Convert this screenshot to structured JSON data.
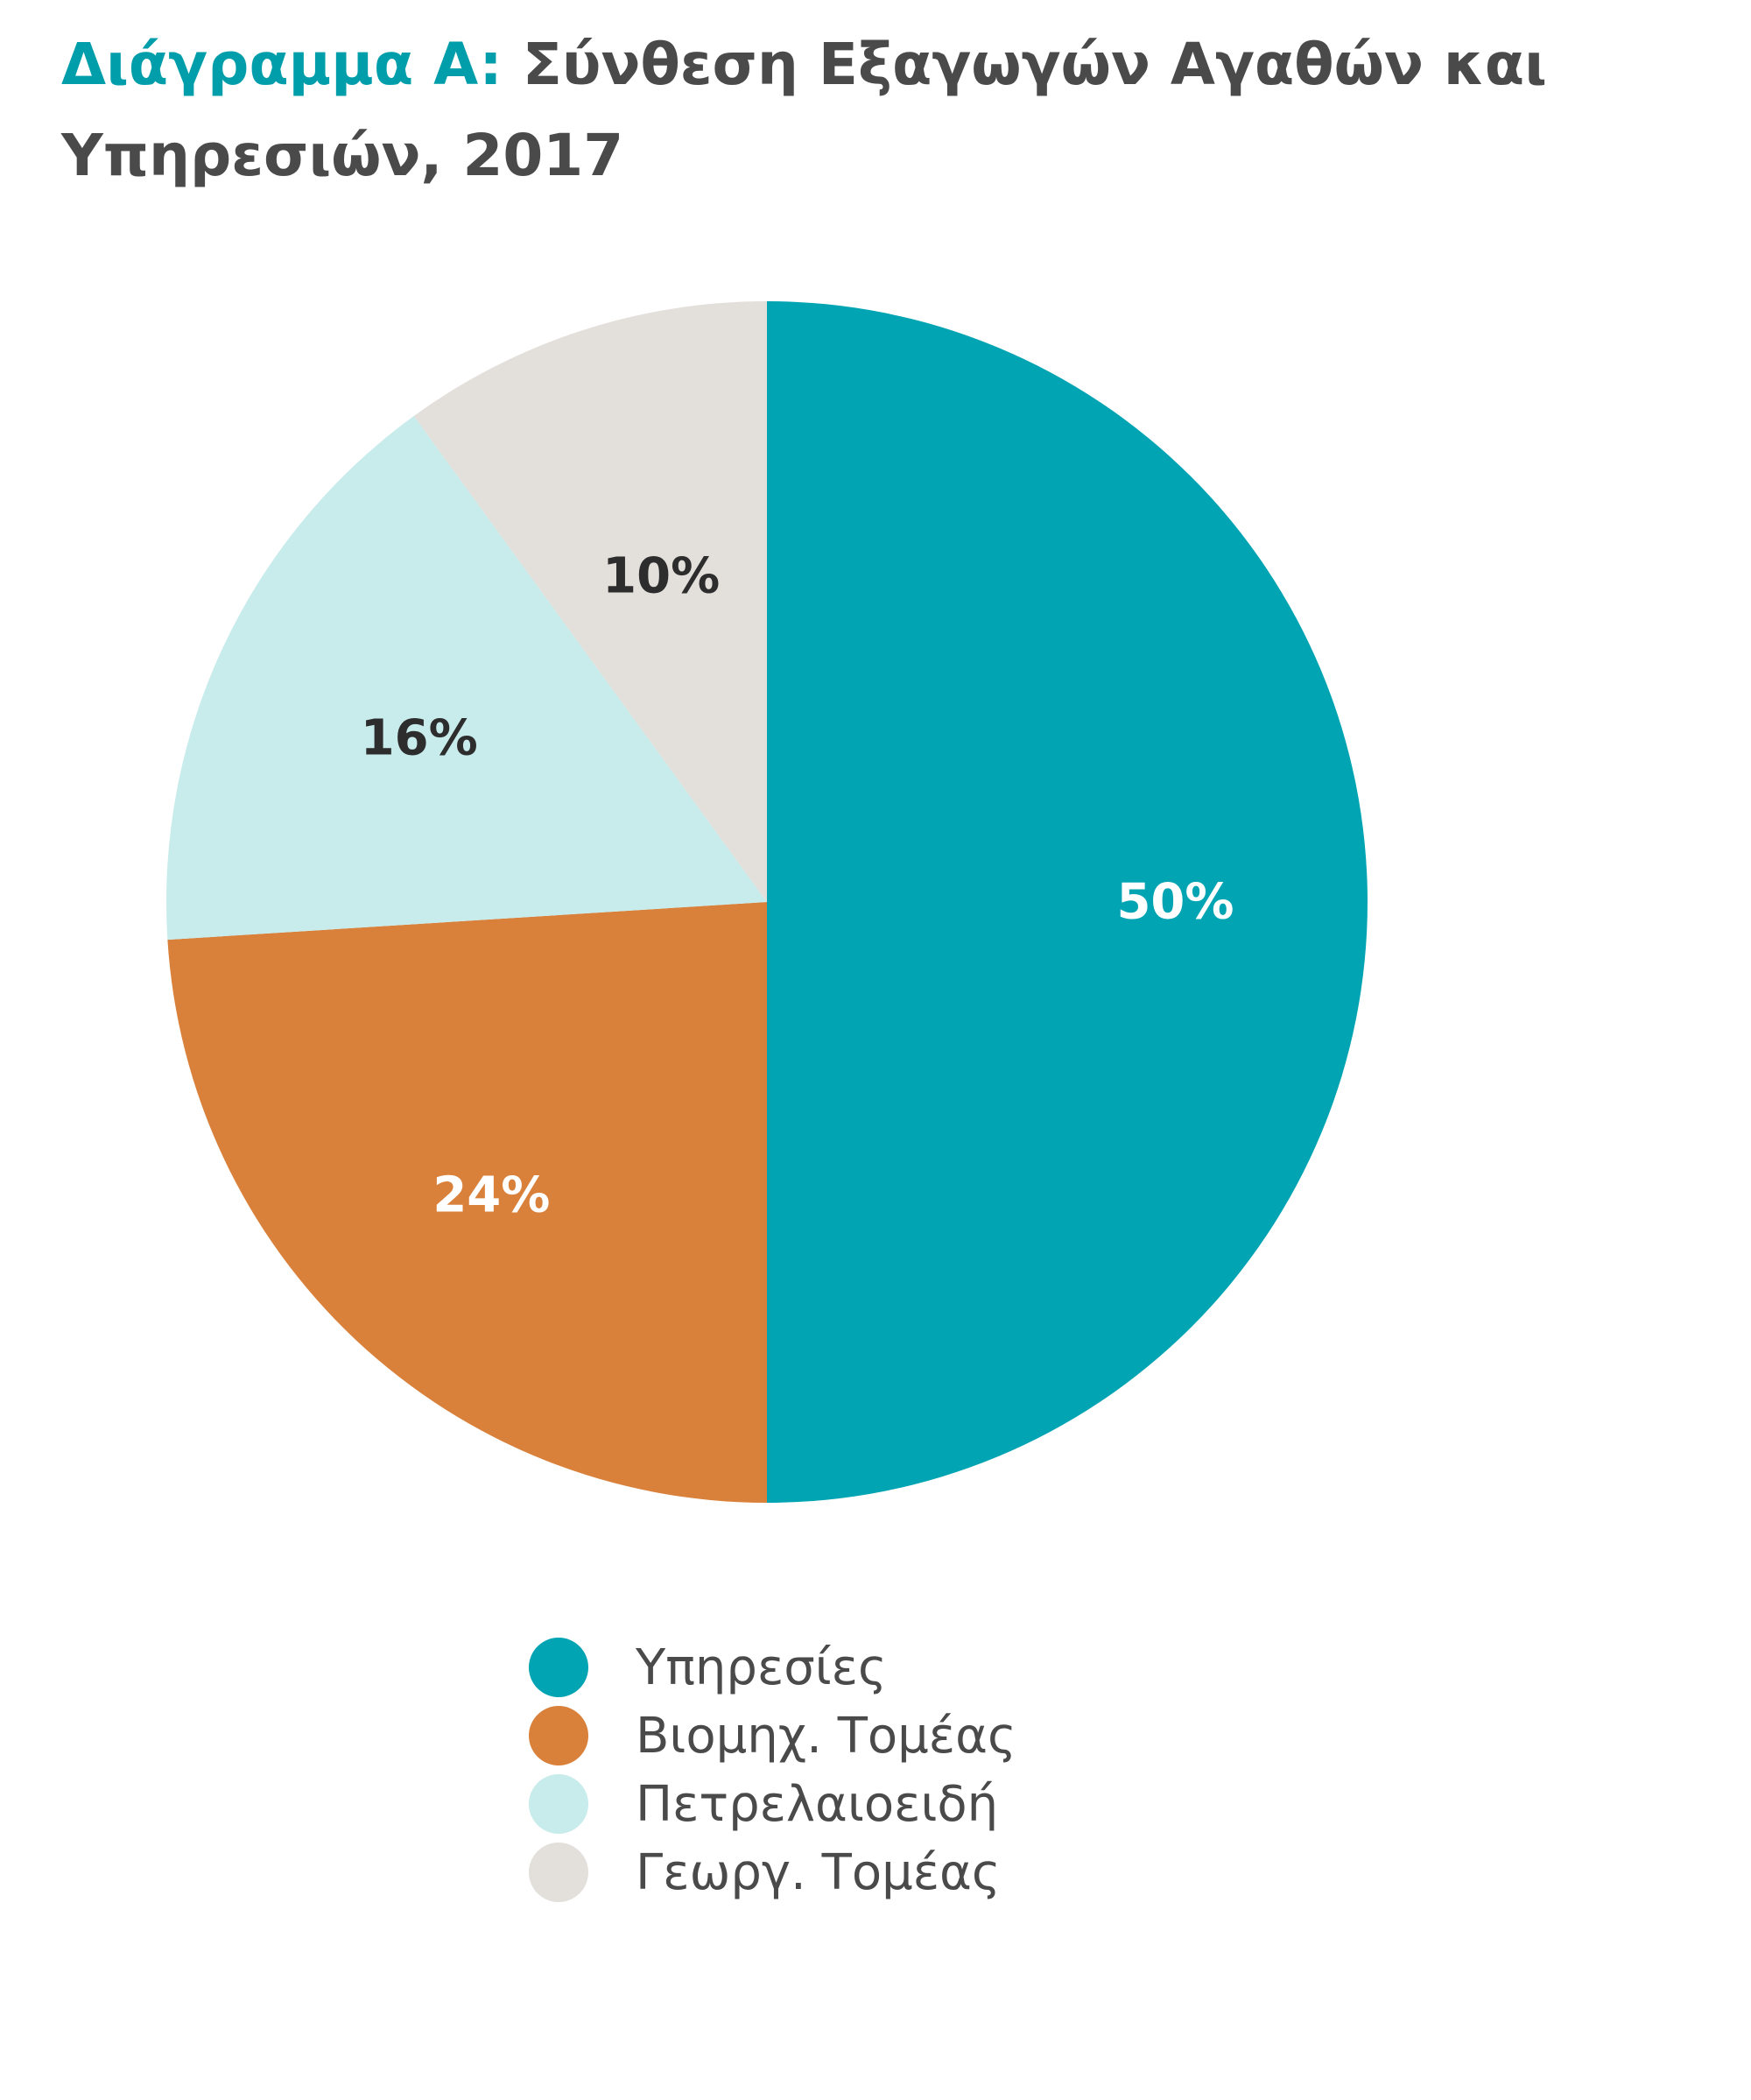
{
  "title": {
    "prefix": "Διάγραμμα A:",
    "text": "Σύνθεση Εξαγωγών Αγαθών και Υπηρεσιών, 2017"
  },
  "chart_data": {
    "type": "pie",
    "title": "Διάγραμμα A: Σύνθεση Εξαγωγών Αγαθών και Υπηρεσιών, 2017",
    "start": "12 o'clock",
    "direction": "clockwise",
    "legend_position": "bottom",
    "slices": [
      {
        "label": "Υπηρεσίες",
        "value": 50,
        "value_label": "50%",
        "color": "#00a4b3",
        "label_color": "#ffffff"
      },
      {
        "label": "Βιομηχ. Τομέας",
        "value": 24,
        "value_label": "24%",
        "color": "#d9803a",
        "label_color": "#ffffff"
      },
      {
        "label": "Πετρελαιοειδή",
        "value": 16,
        "value_label": "16%",
        "color": "#c8ebeb",
        "label_color": "#2d2d2d"
      },
      {
        "label": "Γεωργ. Τομέας",
        "value": 10,
        "value_label": "10%",
        "color": "#e3dfdb",
        "label_color": "#2d2d2d"
      }
    ]
  },
  "colors": {
    "title_accent": "#009eaa",
    "title_text": "#4a4a4a",
    "legend_text": "#4a4a4a"
  }
}
